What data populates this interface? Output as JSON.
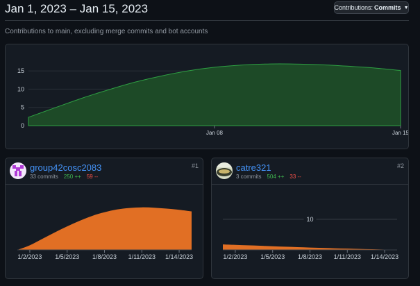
{
  "header": {
    "title": "Jan 1, 2023 – Jan 15, 2023",
    "contributions_prefix": "Contributions:",
    "contributions_value": "Commits"
  },
  "subtitle": "Contributions to main, excluding merge commits and bot accounts",
  "colors": {
    "main_fill": "#1d4a27",
    "main_stroke": "#2ea043",
    "user_fill": "#e16f24",
    "link": "#4493f8",
    "add": "#3fb950",
    "del": "#f85149"
  },
  "icons": {
    "caret": "caret-down-icon"
  },
  "chart_data": [
    {
      "type": "area",
      "x_ticks": [
        "Jan 08",
        "Jan 15"
      ],
      "y_ticks": [
        0,
        5,
        10,
        15
      ],
      "ylim": [
        0,
        17.5
      ],
      "x": [
        1,
        2,
        3,
        4,
        5,
        6,
        7,
        8,
        9,
        10,
        11,
        12,
        13,
        14,
        15
      ],
      "values": [
        2.3,
        4.9,
        7.5,
        9.8,
        11.9,
        13.6,
        15.0,
        16.0,
        16.6,
        16.9,
        16.9,
        16.7,
        16.3,
        15.8,
        15.1
      ]
    },
    {
      "type": "area",
      "x_ticks": [
        "1/2/2023",
        "1/5/2023",
        "1/8/2023",
        "1/11/2023",
        "1/14/2023"
      ],
      "x": [
        1,
        2,
        3,
        4,
        5,
        6,
        7,
        8,
        9,
        10,
        11,
        12,
        13,
        14,
        15
      ],
      "values": [
        0,
        1.5,
        3.6,
        5.7,
        7.7,
        9.5,
        11.1,
        12.3,
        13.2,
        13.7,
        13.9,
        13.8,
        13.5,
        13.1,
        12.6
      ],
      "ylim": [
        0,
        18.6
      ]
    },
    {
      "type": "area",
      "x_ticks": [
        "1/2/2023",
        "1/5/2023",
        "1/8/2023",
        "1/11/2023",
        "1/14/2023"
      ],
      "y_ticks": [
        10
      ],
      "x": [
        1,
        2,
        3,
        4,
        5,
        6,
        7,
        8,
        9,
        10,
        11,
        12,
        13,
        14,
        15
      ],
      "values": [
        1.8,
        1.65,
        1.5,
        1.35,
        1.2,
        1.05,
        0.9,
        0.77,
        0.65,
        0.53,
        0.42,
        0.32,
        0.22,
        0.12,
        0.05
      ],
      "ylim": [
        0,
        18.6
      ]
    }
  ],
  "contributors": [
    {
      "name": "group42cosc2083",
      "commits": "33 commits",
      "additions": "250 ++",
      "deletions": "59 --",
      "rank": "#1"
    },
    {
      "name": "catre321",
      "commits": "3 commits",
      "additions": "504 ++",
      "deletions": "33 --",
      "rank": "#2"
    }
  ]
}
